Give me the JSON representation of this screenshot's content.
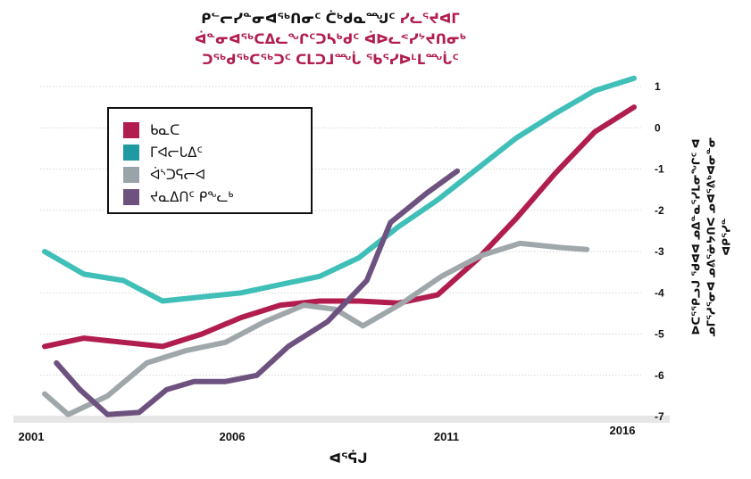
{
  "title": {
    "line1_black": "ᑭᓪᓕᓯᓐᓂᐊᖅᑎᓂᑦ ᑖᒃᑯᓇᙳᑦ",
    "line1_red": "ᓯᓚᕐᔪᐊᒥ",
    "line2": "ᐋᓐᓂᐊᖅᑕᐃᓚᖏᑦᑐᓴᒃᑯᑦ ᐋᐅᓚᕝᓯᔾᔪᑎᓂᒃ",
    "line3": "ᑐᖅᑯᖅᑕᖅᑐᑦ ᑕᒪᑐᒧᙶ ᖃᕐᓯᐅᒻᒪᙶᑦ"
  },
  "chart_data": {
    "type": "line",
    "xlabel": "ᐊᕐᕌᒍ",
    "ylabel": "ᐅᑕᕐᕿᓗᒍ ᖁᐊᐊ ᓄᐃᓐᓇᕐᓯᒪᓂᖏᑦ ᐊ ᓄᒥᕐᓱᕐᓂᐊ ᓄᕕᕐᓃᔭᑎᐸ ᓄᐊᕐᕕᒃᐊᓂᓐᓂ ᐊᑭᕐᓯᓐ",
    "x_ticks": [
      "2001",
      "2006",
      "2011",
      "2016"
    ],
    "ylim": [
      -7,
      1
    ],
    "y_ticks": [
      1,
      0,
      -1,
      -2,
      -3,
      -4,
      -5,
      -6,
      -7
    ],
    "grid": true,
    "legend_position": "top-left",
    "series": [
      {
        "name": "ᑲᓇᑕ",
        "color": "#b01d4e",
        "points": [
          [
            2001,
            -5.3
          ],
          [
            2002,
            -5.1
          ],
          [
            2003,
            -5.2
          ],
          [
            2004,
            -5.3
          ],
          [
            2005,
            -5.0
          ],
          [
            2006,
            -4.6
          ],
          [
            2007,
            -4.3
          ],
          [
            2008,
            -4.2
          ],
          [
            2009,
            -4.2
          ],
          [
            2010,
            -4.25
          ],
          [
            2011,
            -4.05
          ],
          [
            2012,
            -3.2
          ],
          [
            2013,
            -2.2
          ],
          [
            2014,
            -1.1
          ],
          [
            2015,
            -0.1
          ],
          [
            2016,
            0.5
          ]
        ]
      },
      {
        "name": "ᒥᐊᓕᒐᐃᑦ",
        "color": "#3fbfb8",
        "points": [
          [
            2001,
            -3.0
          ],
          [
            2002,
            -3.55
          ],
          [
            2003,
            -3.7
          ],
          [
            2004,
            -4.2
          ],
          [
            2005,
            -4.1
          ],
          [
            2006,
            -4.0
          ],
          [
            2007,
            -3.8
          ],
          [
            2008,
            -3.6
          ],
          [
            2009,
            -3.15
          ],
          [
            2010,
            -2.4
          ],
          [
            2011,
            -1.75
          ],
          [
            2012,
            -1.0
          ],
          [
            2013,
            -0.25
          ],
          [
            2014,
            0.35
          ],
          [
            2015,
            0.9
          ],
          [
            2016,
            1.2
          ]
        ]
      },
      {
        "name": "ᐋᔅᑐᕋᓕᐊ",
        "color": "#a0a7aa",
        "points": [
          [
            2001,
            -6.45
          ],
          [
            2001.6,
            -6.95
          ],
          [
            2002.6,
            -6.5
          ],
          [
            2003.6,
            -5.7
          ],
          [
            2004.6,
            -5.4
          ],
          [
            2005.6,
            -5.2
          ],
          [
            2006.6,
            -4.7
          ],
          [
            2007.6,
            -4.3
          ],
          [
            2008.4,
            -4.4
          ],
          [
            2009.1,
            -4.8
          ],
          [
            2010.1,
            -4.25
          ],
          [
            2011.1,
            -3.6
          ],
          [
            2012.1,
            -3.1
          ],
          [
            2013.1,
            -2.8
          ],
          [
            2014.1,
            -2.9
          ],
          [
            2014.8,
            -2.95
          ]
        ]
      },
      {
        "name": "ᔪᓇᐃᑎᑦ ᑭᖕᓚᒃ",
        "color": "#6d5280",
        "points": [
          [
            2001.3,
            -5.7
          ],
          [
            2001.9,
            -6.35
          ],
          [
            2002.6,
            -6.95
          ],
          [
            2003.4,
            -6.9
          ],
          [
            2004.1,
            -6.35
          ],
          [
            2004.8,
            -6.15
          ],
          [
            2005.6,
            -6.15
          ],
          [
            2006.4,
            -6.0
          ],
          [
            2007.2,
            -5.3
          ],
          [
            2008.2,
            -4.7
          ],
          [
            2009.2,
            -3.7
          ],
          [
            2009.8,
            -2.3
          ],
          [
            2010.7,
            -1.6
          ],
          [
            2011.5,
            -1.05
          ]
        ]
      }
    ]
  }
}
